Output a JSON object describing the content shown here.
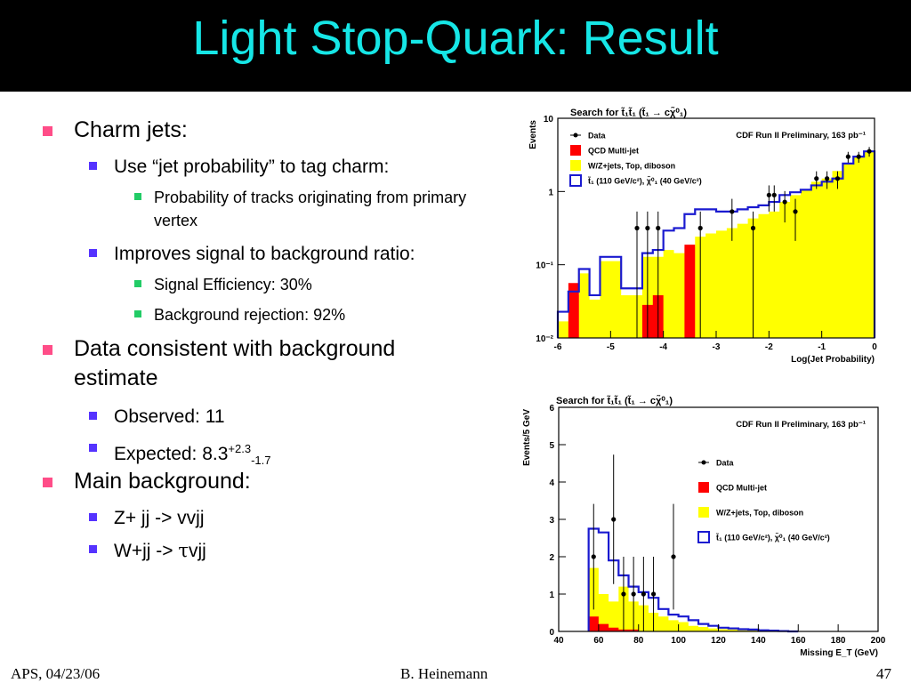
{
  "slide": {
    "title": "Light Stop-Quark: Result",
    "bullets": {
      "b1": "Charm jets:",
      "b1_1": "Use “jet probability” to tag charm:",
      "b1_1_1": "Probability of tracks originating from primary vertex",
      "b1_2": "Improves signal to background ratio:",
      "b1_2_1": "Signal Efficiency: 30%",
      "b1_2_2": "Background rejection: 92%",
      "b2": "Data consistent with background estimate",
      "b2_1": "Observed: 11",
      "b2_2_prefix": "Expected: 8.3",
      "b2_2_sup": "+2.3",
      "b2_2_sub": "-1.7",
      "b3": "Main background:",
      "b3_1": "Z+ jj -> vvjj",
      "b3_2_prefix": "W+jj -> ",
      "b3_2_tau": "τ",
      "b3_2_suffix": "vjj"
    }
  },
  "footer": {
    "left": "APS, 04/23/06",
    "center": "B. Heinemann",
    "right": "47"
  },
  "colors": {
    "title": "#16e6e6",
    "bullet1": "#ff4d88",
    "bullet2": "#5533ff",
    "bullet3": "#22cc66",
    "qcd": "#ff0000",
    "ewk": "#ffff00",
    "signal": "#1a1ad0"
  },
  "chart_data": [
    {
      "type": "histogram",
      "title": "Search for t̃₁t̃₁ (t̃₁ → cχ̃⁰₁)",
      "subtitle": "CDF Run II Preliminary, 163 pb⁻¹",
      "xlabel": "Log(Jet Probability)",
      "ylabel": "Events",
      "yscale": "log",
      "xlim": [
        -6,
        0
      ],
      "ylim": [
        0.01,
        100
      ],
      "xticks": [
        "-6",
        "-5",
        "-4",
        "-3",
        "-2",
        "-1",
        "0"
      ],
      "yticks": [
        "10⁻²",
        "10⁻¹",
        "1",
        "10"
      ],
      "legend_position": "top-left",
      "legend": [
        "Data",
        "QCD Multi-jet",
        "W/Z+jets, Top, diboson",
        "t̃₁ (110 GeV/c²), χ̃⁰₁ (40 GeV/c²)"
      ],
      "bin_edges": [
        -6.0,
        -5.8,
        -5.6,
        -5.4,
        -5.2,
        -5.0,
        -4.8,
        -4.6,
        -4.4,
        -4.2,
        -4.0,
        -3.8,
        -3.6,
        -3.4,
        -3.2,
        -3.0,
        -2.8,
        -2.6,
        -2.4,
        -2.2,
        -2.0,
        -1.8,
        -1.6,
        -1.4,
        -1.2,
        -1.0,
        -0.8,
        -0.6,
        -0.4,
        -0.2,
        0.0
      ],
      "series": [
        {
          "name": "W/Z+jets, Top, diboson",
          "values": [
            0.02,
            0.06,
            0.15,
            0.05,
            0.25,
            0.25,
            0.06,
            0.06,
            0.3,
            0.3,
            0.4,
            0.35,
            0.45,
            0.7,
            0.8,
            0.9,
            1.0,
            1.2,
            1.5,
            1.8,
            2.0,
            3.0,
            4.0,
            5.0,
            7.0,
            8.0,
            11.0,
            15.0,
            20.0,
            25.0
          ]
        },
        {
          "name": "QCD Multi-jet",
          "values": [
            0.0,
            0.1,
            0.0,
            0.0,
            0.0,
            0.0,
            0.0,
            0.0,
            0.04,
            0.06,
            0.0,
            0.0,
            0.5,
            0.0,
            0.0,
            0.0,
            0.0,
            0.0,
            0.0,
            0.0,
            0.0,
            0.0,
            0.0,
            0.0,
            0.0,
            0.0,
            0.0,
            0.0,
            0.0,
            0.0
          ]
        },
        {
          "name": "t̃₁ (110 GeV/c²), χ̃⁰₁ (40 GeV/c²)",
          "values": [
            0.03,
            0.07,
            0.18,
            0.06,
            0.3,
            0.3,
            0.08,
            0.08,
            0.35,
            0.4,
            0.9,
            1.0,
            1.8,
            2.2,
            2.2,
            2.0,
            2.0,
            2.2,
            2.4,
            2.6,
            3.0,
            4.0,
            4.5,
            5.0,
            6.0,
            7.0,
            8.0,
            15.0,
            20.0,
            25.0
          ]
        }
      ],
      "data_points": {
        "x": [
          -4.5,
          -4.3,
          -4.1,
          -3.3,
          -2.7,
          -2.3,
          -2.0,
          -1.9,
          -1.7,
          -1.5,
          -1.1,
          -0.9,
          -0.7,
          -0.5,
          -0.3,
          -0.1
        ],
        "y": [
          1,
          1,
          1,
          1,
          2,
          1,
          4,
          4,
          3,
          2,
          8,
          8,
          8,
          20,
          20,
          25
        ]
      }
    },
    {
      "type": "histogram",
      "title": "Search for t̃₁t̃₁ (t̃₁ → cχ̃⁰₁)",
      "subtitle": "CDF Run II Preliminary, 163 pb⁻¹",
      "xlabel": "Missing E_T (GeV)",
      "ylabel": "Events/5 GeV",
      "yscale": "linear",
      "xlim": [
        40,
        200
      ],
      "ylim": [
        0,
        6
      ],
      "xticks": [
        "40",
        "60",
        "80",
        "100",
        "120",
        "140",
        "160",
        "180",
        "200"
      ],
      "yticks": [
        "0",
        "1",
        "2",
        "3",
        "4",
        "5",
        "6"
      ],
      "legend_position": "right",
      "legend": [
        "Data",
        "QCD Multi-jet",
        "W/Z+jets, Top, diboson",
        "t̃₁ (110 GeV/c²), χ̃⁰₁ (40 GeV/c²)"
      ],
      "bin_edges": [
        55,
        60,
        65,
        70,
        75,
        80,
        85,
        90,
        95,
        100,
        105,
        110,
        115,
        120,
        125,
        130,
        135,
        140,
        145,
        150,
        155,
        160
      ],
      "series": [
        {
          "name": "W/Z+jets, Top, diboson",
          "values": [
            1.7,
            1.0,
            0.8,
            1.2,
            0.8,
            0.7,
            0.5,
            0.4,
            0.3,
            0.25,
            0.15,
            0.12,
            0.08,
            0.06,
            0.05,
            0.03,
            0.03,
            0.02,
            0.01,
            0.0,
            0.0
          ]
        },
        {
          "name": "QCD Multi-jet",
          "values": [
            0.4,
            0.2,
            0.1,
            0.05,
            0.05,
            0.0,
            0.0,
            0.0,
            0.0,
            0.0,
            0.0,
            0.0,
            0.0,
            0.0,
            0.0,
            0.0,
            0.0,
            0.0,
            0.0,
            0.0,
            0.0
          ]
        },
        {
          "name": "t̃₁ (110 GeV/c²), χ̃⁰₁ (40 GeV/c²)",
          "values": [
            2.75,
            2.65,
            1.9,
            1.5,
            1.2,
            1.05,
            0.9,
            0.6,
            0.45,
            0.4,
            0.3,
            0.2,
            0.15,
            0.1,
            0.08,
            0.06,
            0.05,
            0.03,
            0.02,
            0.01,
            0.0
          ]
        }
      ],
      "data_points": {
        "x": [
          57.5,
          67.5,
          72.5,
          77.5,
          82.5,
          87.5,
          97.5
        ],
        "y": [
          2,
          3,
          1,
          1,
          1,
          1,
          2
        ]
      }
    }
  ]
}
